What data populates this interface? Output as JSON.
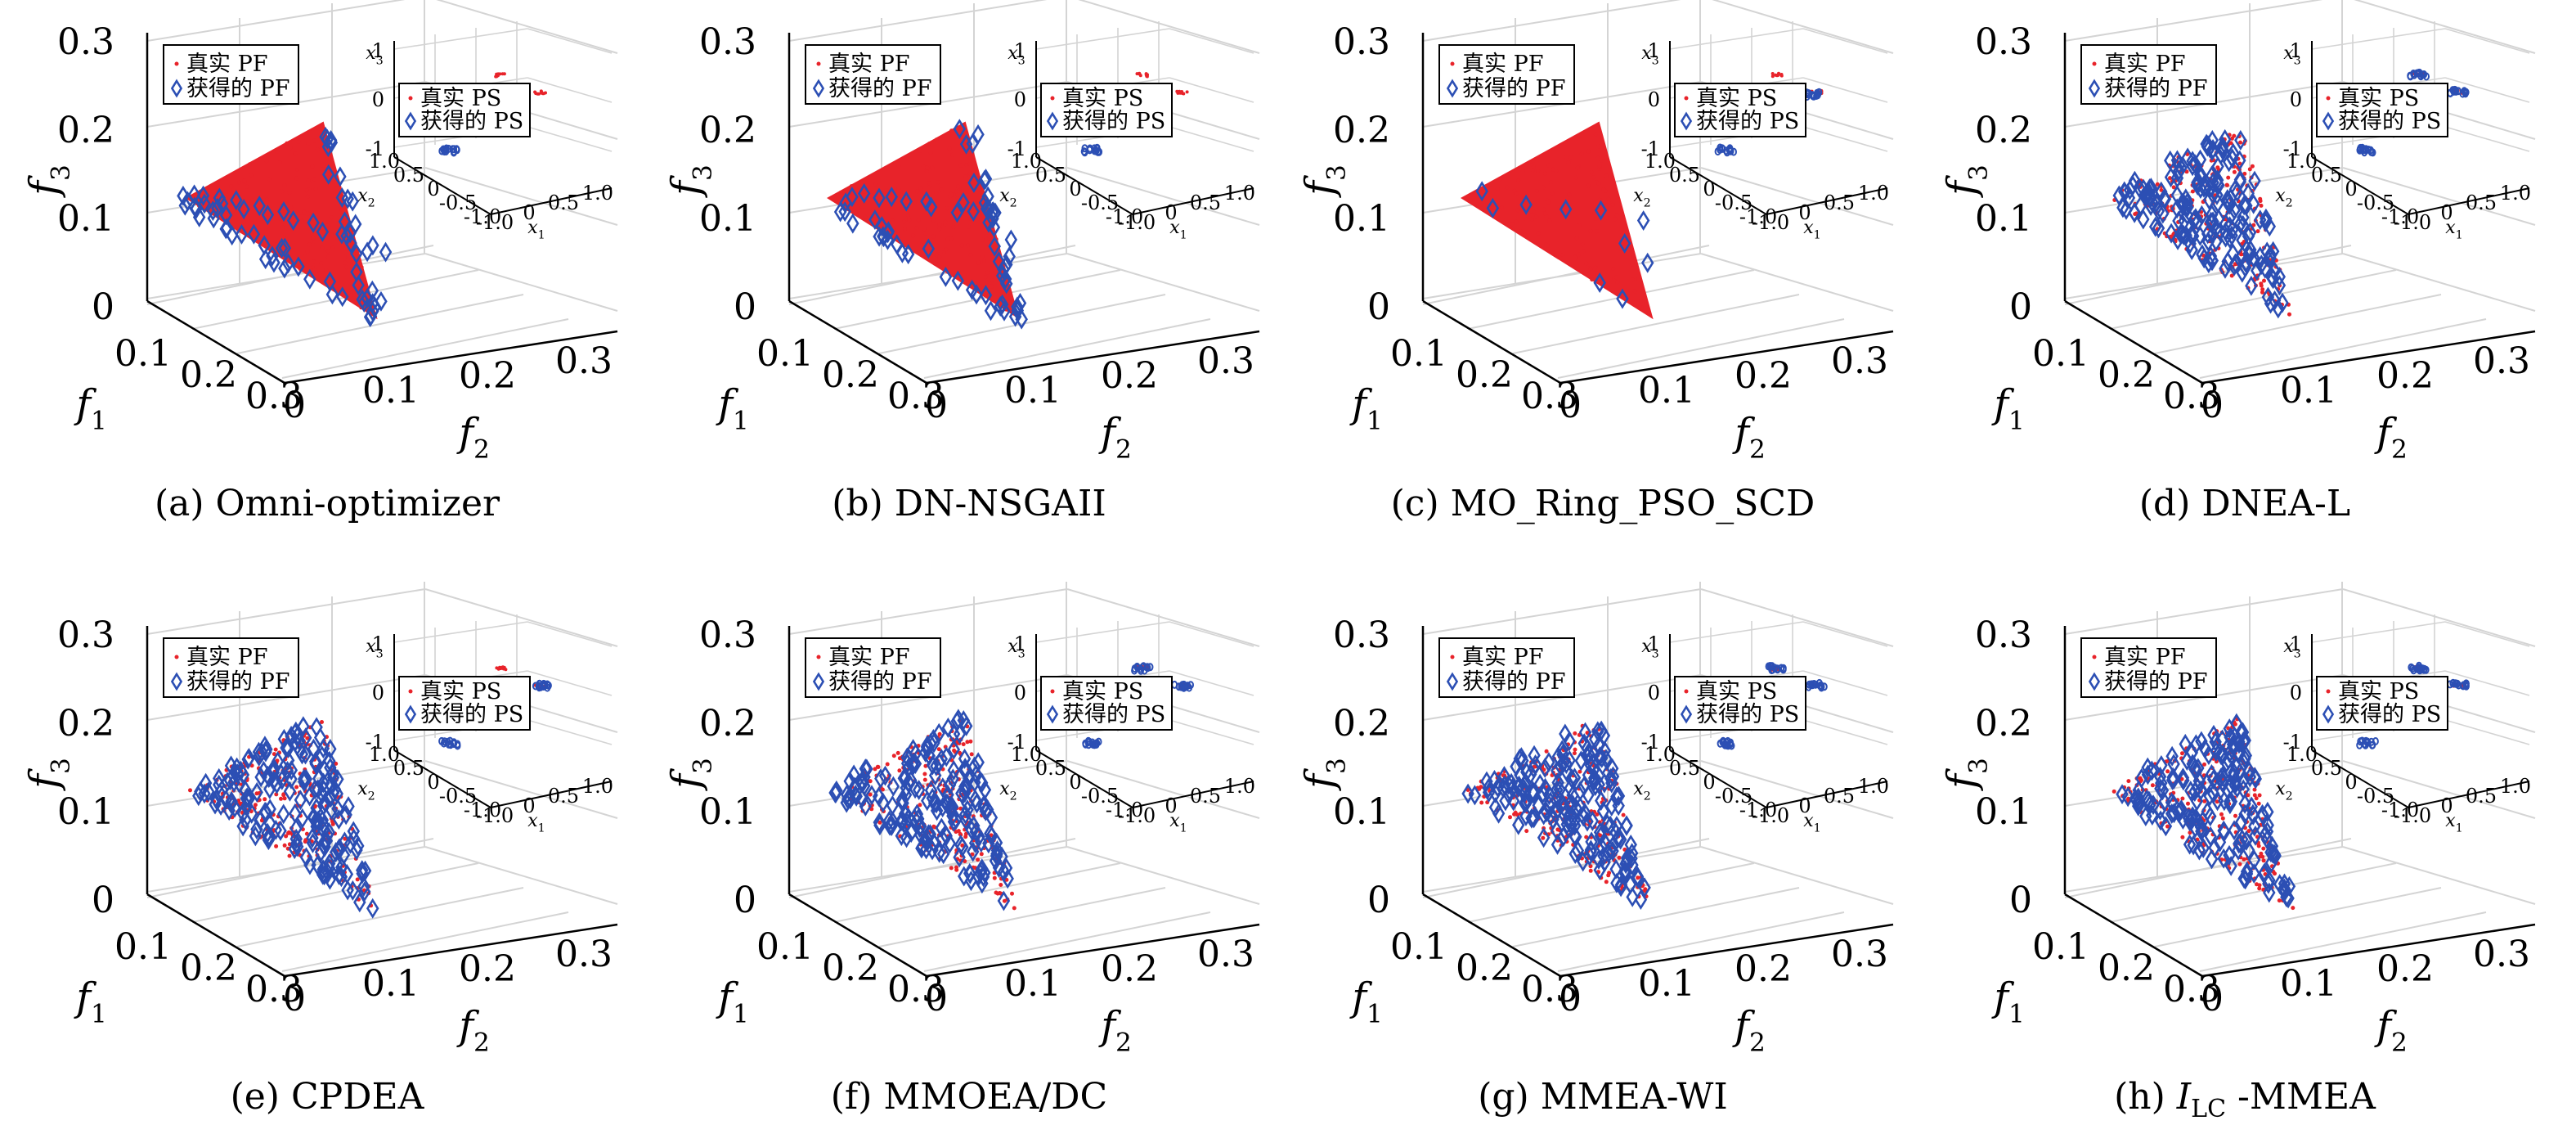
{
  "chart_data": {
    "type": "scatter",
    "layout": "2 rows x 4 columns of 3-D scatter plots, each with an inset 3-D decision-space plot",
    "colors": {
      "true": "#e8232a",
      "obtained": "#2c4fb4",
      "grid": "#d4d4d4",
      "axis": "#000000"
    },
    "common": {
      "main": {
        "xlabel": "f",
        "xlabel_sub": "1",
        "ylabel": "f",
        "ylabel_sub": "2",
        "zlabel": "f",
        "zlabel_sub": "3",
        "f1_ticks": [
          "0.1",
          "0.2",
          "0.3"
        ],
        "f2_ticks": [
          "0",
          "0.1",
          "0.2",
          "0.3"
        ],
        "f3_ticks": [
          "0",
          "0.1",
          "0.2",
          "0.3"
        ],
        "f3_tick_values": [
          0,
          0.1,
          0.2,
          0.3
        ],
        "xlim": [
          0,
          0.3
        ],
        "ylim": [
          0,
          0.3
        ],
        "zlim": [
          0,
          0.3
        ],
        "legend": [
          {
            "label": "真实 PF",
            "marker": "dot",
            "color": "#e8232a"
          },
          {
            "label": "获得的 PF",
            "marker": "diamond",
            "color": "#2c4fb4"
          }
        ]
      },
      "inset": {
        "xlabel": "x",
        "xlabel_sub": "1",
        "ylabel": "x",
        "ylabel_sub": "2",
        "zlabel": "x",
        "zlabel_sub": "3",
        "x1_ticks": [
          "-1.0",
          "0",
          "0.5",
          "1.0"
        ],
        "x2_ticks": [
          "-1.0",
          "-0.5",
          "0",
          "0.5",
          "1.0"
        ],
        "x3_ticks": [
          "-1",
          "0",
          "1"
        ],
        "legend": [
          {
            "label": "真实 PS",
            "marker": "dot",
            "color": "#e8232a"
          },
          {
            "label": "获得的 PS",
            "marker": "diamond",
            "color": "#2c4fb4"
          }
        ]
      }
    },
    "panels": [
      {
        "label": "(a) Omni-optimizer",
        "true_pf": "dense filled triangle",
        "obtained_pf": "diamonds along left and lower edge of the front",
        "obtained_pf_points": [
          [
            0.02,
            0.04,
            0.19
          ],
          [
            0.04,
            0.06,
            0.16
          ],
          [
            0.06,
            0.08,
            0.14
          ],
          [
            0.09,
            0.1,
            0.12
          ],
          [
            0.12,
            0.12,
            0.1
          ],
          [
            0.16,
            0.13,
            0.07
          ],
          [
            0.2,
            0.14,
            0.05
          ],
          [
            0.24,
            0.15,
            0.02
          ],
          [
            0.26,
            0.15,
            0.01
          ],
          [
            0.05,
            0.05,
            0.17
          ],
          [
            0.08,
            0.07,
            0.15
          ],
          [
            0.11,
            0.09,
            0.12
          ],
          [
            0.14,
            0.11,
            0.09
          ],
          [
            0.18,
            0.12,
            0.06
          ],
          [
            0.22,
            0.13,
            0.04
          ],
          [
            0.03,
            0.02,
            0.23
          ],
          [
            0.05,
            0.03,
            0.2
          ],
          [
            0.01,
            0.03,
            0.24
          ]
        ],
        "inset_clusters_true": [
          [
            0.2,
            0.95,
            0.8
          ],
          [
            0.9,
            0.95,
            0.45
          ]
        ],
        "inset_clusters_obtained": [
          [
            -0.2,
            0.1,
            -0.8
          ]
        ]
      },
      {
        "label": "(b) DN-NSGAII",
        "true_pf": "dense filled triangle",
        "obtained_pf": "diamonds clustered along upper edge and right side",
        "obtained_pf_points": [
          [
            0.03,
            0.05,
            0.19
          ],
          [
            0.06,
            0.09,
            0.15
          ],
          [
            0.09,
            0.12,
            0.12
          ],
          [
            0.12,
            0.14,
            0.1
          ],
          [
            0.15,
            0.16,
            0.08
          ],
          [
            0.2,
            0.17,
            0.05
          ],
          [
            0.04,
            0.08,
            0.17
          ],
          [
            0.07,
            0.11,
            0.13
          ],
          [
            0.11,
            0.15,
            0.11
          ],
          [
            0.16,
            0.18,
            0.06
          ],
          [
            0.23,
            0.16,
            0.03
          ],
          [
            0.14,
            0.19,
            0.07
          ]
        ],
        "inset_clusters_true": [
          [
            0.2,
            0.95,
            0.8
          ],
          [
            0.9,
            0.95,
            0.45
          ]
        ],
        "inset_clusters_obtained": [
          [
            -0.2,
            0.1,
            -0.8
          ]
        ]
      },
      {
        "label": "(c) MO_Ring_PSO_SCD",
        "true_pf": "dense filled triangle",
        "obtained_pf": "few sparse diamonds",
        "obtained_pf_points": [
          [
            0.02,
            0.06,
            0.19
          ],
          [
            0.05,
            0.03,
            0.21
          ],
          [
            0.12,
            0.13,
            0.08
          ],
          [
            0.2,
            0.2,
            0.03
          ],
          [
            0.08,
            0.09,
            0.13
          ],
          [
            0.15,
            0.17,
            0.05
          ]
        ],
        "inset_clusters_true": [
          [
            0.2,
            0.95,
            0.8
          ],
          [
            0.9,
            0.95,
            0.45
          ]
        ],
        "inset_clusters_obtained": [
          [
            -0.2,
            0.1,
            -0.8
          ],
          [
            0.9,
            0.9,
            0.4
          ]
        ]
      },
      {
        "label": "(d) DNEA-L",
        "true_pf": "sparse scattered dots",
        "obtained_pf": "diamonds covering whole front",
        "obtained_pf_points": "uniform",
        "inset_clusters_true": [
          [
            0.2,
            0.95,
            0.8
          ],
          [
            0.9,
            0.95,
            0.45
          ]
        ],
        "inset_clusters_obtained": [
          [
            0.2,
            0.95,
            0.8
          ],
          [
            0.9,
            0.95,
            0.45
          ],
          [
            -0.2,
            0.1,
            -0.8
          ]
        ]
      },
      {
        "label": "(e) CPDEA",
        "true_pf": "sparse scattered dots",
        "obtained_pf": "diamonds covering whole front",
        "obtained_pf_points": "uniform",
        "inset_clusters_true": [
          [
            0.2,
            0.95,
            0.8
          ],
          [
            0.9,
            0.95,
            0.45
          ]
        ],
        "inset_clusters_obtained": [
          [
            0.9,
            0.95,
            0.45
          ],
          [
            -0.2,
            0.1,
            -0.8
          ]
        ]
      },
      {
        "label": "(f) MMOEA/DC",
        "true_pf": "sparse scattered dots",
        "obtained_pf": "diamonds covering whole front",
        "obtained_pf_points": "uniform",
        "inset_clusters_true": [
          [
            0.2,
            0.95,
            0.8
          ],
          [
            0.9,
            0.95,
            0.45
          ]
        ],
        "inset_clusters_obtained": [
          [
            0.2,
            0.95,
            0.8
          ],
          [
            0.9,
            0.95,
            0.45
          ],
          [
            -0.2,
            0.1,
            -0.8
          ]
        ]
      },
      {
        "label": "(g) MMEA-WI",
        "true_pf": "sparse scattered dots",
        "obtained_pf": "diamonds covering whole front",
        "obtained_pf_points": "uniform",
        "inset_clusters_true": [
          [
            0.2,
            0.95,
            0.8
          ],
          [
            0.9,
            0.95,
            0.45
          ]
        ],
        "inset_clusters_obtained": [
          [
            0.2,
            0.95,
            0.8
          ],
          [
            0.9,
            0.95,
            0.45
          ],
          [
            -0.2,
            0.1,
            -0.8
          ]
        ]
      },
      {
        "label": "(h) ",
        "label_italic": "I",
        "label_sub": "LC",
        "label_suffix": " -MMEA",
        "true_pf": "sparse scattered dots",
        "obtained_pf": "diamonds covering whole front",
        "obtained_pf_points": "uniform",
        "inset_clusters_true": [
          [
            0.2,
            0.95,
            0.8
          ],
          [
            0.9,
            0.95,
            0.45
          ]
        ],
        "inset_clusters_obtained": [
          [
            0.2,
            0.95,
            0.8
          ],
          [
            0.9,
            0.95,
            0.45
          ],
          [
            -0.2,
            0.1,
            -0.8
          ]
        ]
      }
    ]
  }
}
